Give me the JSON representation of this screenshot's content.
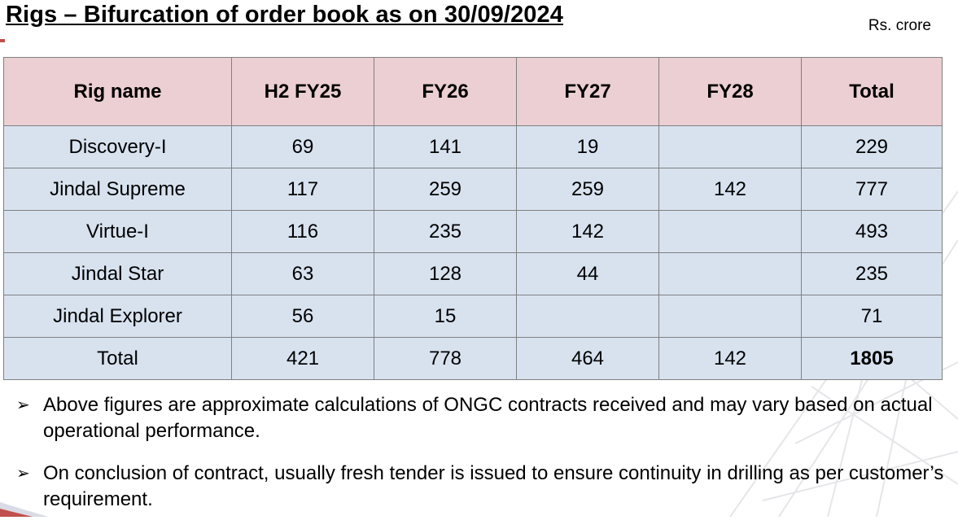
{
  "header": {
    "title": "Rigs – Bifurcation of order book as on 30/09/2024",
    "unit": "Rs. crore"
  },
  "table": {
    "columns": [
      "Rig name",
      "H2 FY25",
      "FY26",
      "FY27",
      "FY28",
      "Total"
    ],
    "rows": [
      [
        "Discovery-I",
        "69",
        "141",
        "19",
        "",
        "229"
      ],
      [
        "Jindal Supreme",
        "117",
        "259",
        "259",
        "142",
        "777"
      ],
      [
        "Virtue-I",
        "116",
        "235",
        "142",
        "",
        "493"
      ],
      [
        "Jindal Star",
        "63",
        "128",
        "44",
        "",
        "235"
      ],
      [
        "Jindal Explorer",
        "56",
        "15",
        "",
        "",
        "71"
      ],
      [
        "Total",
        "421",
        "778",
        "464",
        "142",
        "1805"
      ]
    ]
  },
  "notes": [
    {
      "bullet": "➢",
      "text": "Above figures are approximate calculations of ONGC contracts received and may vary based on actual operational performance."
    },
    {
      "bullet": "➢",
      "text": "On conclusion of contract, usually fresh tender is issued to ensure continuity in drilling as per customer’s requirement."
    }
  ],
  "colors": {
    "header_fill": "#eccfd2",
    "body_fill": "#d8e2ef",
    "border": "#7f7f7f",
    "accent": "#c0504d"
  }
}
